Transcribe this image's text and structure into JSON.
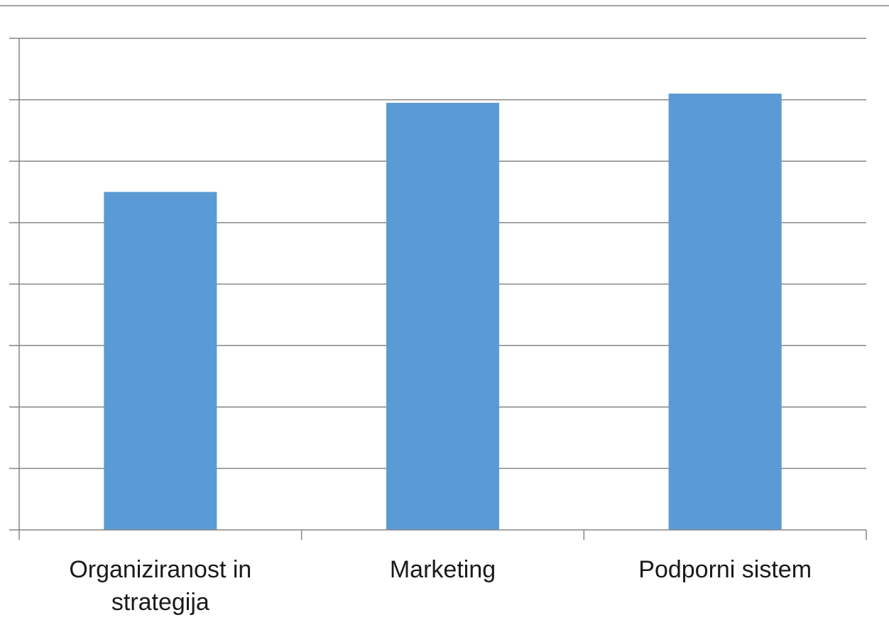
{
  "chart_data": {
    "type": "bar",
    "categories": [
      [
        "Organiziranost in",
        "strategija"
      ],
      [
        "Marketing"
      ],
      [
        "Podporni sistem"
      ]
    ],
    "values": [
      5.5,
      6.95,
      7.1
    ],
    "ylim": [
      0,
      8
    ],
    "grid": true,
    "legend": "none",
    "colors": {
      "bar": "#5b9bd5",
      "grid": "#868686",
      "text": "#1a1a1a"
    }
  }
}
